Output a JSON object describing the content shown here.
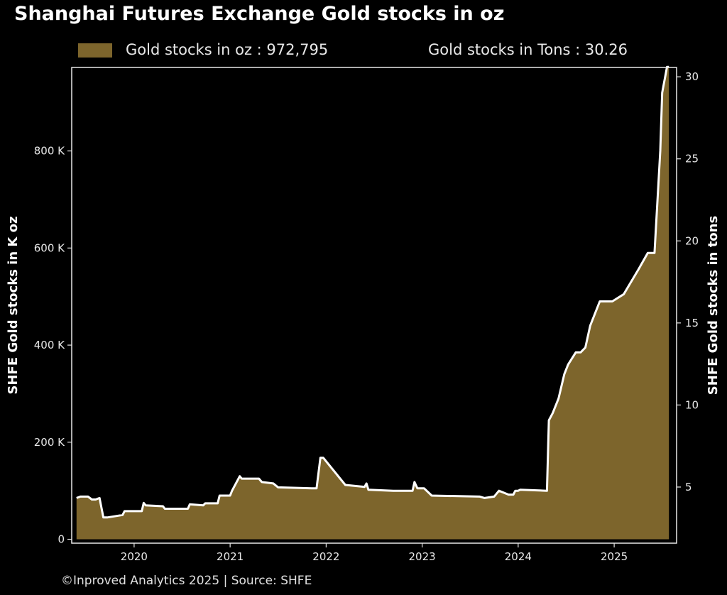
{
  "title": "Shanghai Futures Exchange Gold stocks in oz",
  "legend": {
    "oz_label": "Gold stocks in oz : 972,795",
    "tons_label": "Gold stocks in Tons : 30.26"
  },
  "footer": "©Inproved Analytics 2025 | Source: SHFE",
  "colors": {
    "background": "#000000",
    "area_fill": "#7d652c",
    "line": "#ffffff",
    "axis": "#e8e8e8"
  },
  "chart_data": {
    "type": "area",
    "title": "Shanghai Futures Exchange Gold stocks in oz",
    "ylabel_left": "SHFE Gold stocks in K oz",
    "ylabel_right": "SHFE Gold stocks in tons",
    "xlabel": "",
    "xlim": [
      2019.35,
      2025.65
    ],
    "ylim_left": [
      -8,
      972
    ],
    "ylim_right": [
      1.58,
      30.57
    ],
    "x_ticks": [
      2020,
      2021,
      2022,
      2023,
      2024,
      2025
    ],
    "x_tick_labels": [
      "2020",
      "2021",
      "2022",
      "2023",
      "2024",
      "2025"
    ],
    "y_left_ticks": [
      0,
      200,
      400,
      600,
      800
    ],
    "y_left_tick_labels": [
      "0",
      "200 K",
      "400 K",
      "600 K",
      "800 K"
    ],
    "y_right_ticks": [
      5,
      10,
      15,
      20,
      25,
      30
    ],
    "y_right_tick_labels": [
      "5",
      "10",
      "15",
      "20",
      "25",
      "30"
    ],
    "legend_position": "top",
    "grid": false,
    "series": [
      {
        "name": "Gold stocks in oz",
        "unit": "K oz",
        "x": [
          2019.4,
          2019.44,
          2019.52,
          2019.56,
          2019.6,
          2019.64,
          2019.68,
          2019.72,
          2019.88,
          2019.9,
          2020.08,
          2020.1,
          2020.12,
          2020.3,
          2020.32,
          2020.56,
          2020.58,
          2020.72,
          2020.74,
          2020.87,
          2020.89,
          2021.0,
          2021.02,
          2021.1,
          2021.12,
          2021.3,
          2021.33,
          2021.45,
          2021.5,
          2021.85,
          2021.9,
          2021.94,
          2021.97,
          2022.2,
          2022.4,
          2022.42,
          2022.44,
          2022.7,
          2022.9,
          2022.92,
          2022.95,
          2023.02,
          2023.1,
          2023.6,
          2023.65,
          2023.75,
          2023.8,
          2023.9,
          2023.95,
          2023.97,
          2024.0,
          2024.02,
          2024.3,
          2024.32,
          2024.36,
          2024.42,
          2024.48,
          2024.52,
          2024.6,
          2024.65,
          2024.7,
          2024.75,
          2024.85,
          2024.9,
          2024.95,
          2024.98,
          2025.1,
          2025.25,
          2025.35,
          2025.42,
          2025.48,
          2025.5,
          2025.55,
          2025.57
        ],
        "values": [
          85,
          88,
          88,
          82,
          82,
          85,
          45,
          45,
          50,
          58,
          58,
          75,
          70,
          68,
          63,
          63,
          72,
          70,
          74,
          74,
          90,
          90,
          100,
          130,
          125,
          125,
          118,
          115,
          107,
          105,
          105,
          168,
          168,
          112,
          108,
          115,
          102,
          100,
          100,
          118,
          105,
          105,
          90,
          88,
          85,
          88,
          100,
          92,
          92,
          100,
          100,
          102,
          100,
          245,
          260,
          290,
          340,
          360,
          385,
          385,
          395,
          440,
          490,
          490,
          490,
          490,
          505,
          555,
          590,
          590,
          800,
          920,
          973,
          973
        ]
      }
    ]
  }
}
